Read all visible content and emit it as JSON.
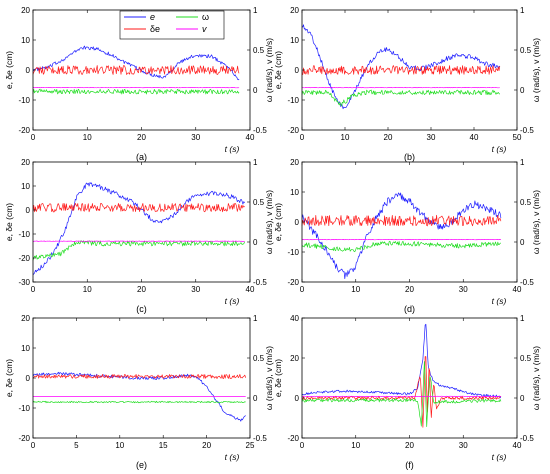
{
  "colors": {
    "e": "#1f1fff",
    "delta_e": "#ff1a1a",
    "omega": "#22dd22",
    "v": "#ff00ff"
  },
  "legend": {
    "panel_index": 0,
    "entries": [
      {
        "key": "e",
        "label": "e",
        "color": "#1f1fff"
      },
      {
        "key": "omega",
        "label": "ω",
        "color": "#22dd22"
      },
      {
        "key": "delta_e",
        "label": "δe",
        "color": "#ff1a1a"
      },
      {
        "key": "v",
        "label": "v",
        "color": "#ff00ff"
      }
    ]
  },
  "chart_data": [
    {
      "panel": "(a)",
      "type": "line",
      "xlabel": "t (s)",
      "ylabel_left": "e, δe (cm)",
      "ylabel_right": "ω (rad/s), v (m/s)",
      "xlim": [
        0,
        40
      ],
      "xticks": [
        "0",
        "10",
        "20",
        "30",
        "40"
      ],
      "ylim_left": [
        -20,
        20
      ],
      "yticks_left": [
        "-20",
        "-10",
        "0",
        "10",
        "20"
      ],
      "ylim_right": [
        -0.5,
        1
      ],
      "yticks_right": [
        "-0.5",
        "0",
        "0.5",
        "1"
      ],
      "series": [
        {
          "name": "e",
          "axis": "left",
          "color": "#1f1fff",
          "noise": 0.6,
          "x": [
            0,
            3,
            6,
            9,
            12,
            15,
            18,
            21,
            24,
            27,
            30,
            33,
            36,
            38
          ],
          "y": [
            0,
            1,
            4,
            7.5,
            7,
            4.5,
            1.5,
            -1,
            -2.5,
            2.5,
            5,
            4.5,
            1,
            -3.5
          ]
        },
        {
          "name": "δe",
          "axis": "left",
          "color": "#ff1a1a",
          "noise": 1.5,
          "x": [
            0,
            38
          ],
          "y": [
            0,
            0
          ]
        },
        {
          "name": "ω",
          "axis": "right",
          "color": "#22dd22",
          "noise": 0.03,
          "x": [
            0,
            38
          ],
          "y": [
            -0.02,
            -0.02
          ]
        },
        {
          "name": "v",
          "axis": "right",
          "color": "#ff00ff",
          "noise": 0.003,
          "x": [
            0,
            38
          ],
          "y": [
            0.03,
            0.03
          ]
        }
      ]
    },
    {
      "panel": "(b)",
      "type": "line",
      "xlabel": "t (s)",
      "ylabel_left": "e, δe (cm)",
      "ylabel_right": "ω (rad/s), v (m/s)",
      "xlim": [
        0,
        50
      ],
      "xticks": [
        "0",
        "10",
        "20",
        "30",
        "40",
        "50"
      ],
      "ylim_left": [
        -20,
        20
      ],
      "yticks_left": [
        "-20",
        "-10",
        "0",
        "10",
        "20"
      ],
      "ylim_right": [
        -0.5,
        1
      ],
      "yticks_right": [
        "-0.5",
        "0",
        "0.5",
        "1"
      ],
      "series": [
        {
          "name": "e",
          "axis": "left",
          "color": "#1f1fff",
          "noise": 0.8,
          "x": [
            0,
            2,
            4,
            6,
            8,
            10,
            12,
            14,
            16,
            18,
            20,
            22,
            25,
            28,
            31,
            34,
            37,
            40,
            43,
            46
          ],
          "y": [
            15,
            12,
            5,
            -3,
            -10,
            -13,
            -8,
            -2,
            3,
            6.5,
            7,
            5,
            1,
            0.5,
            2,
            4,
            5,
            4,
            2,
            1
          ]
        },
        {
          "name": "δe",
          "axis": "left",
          "color": "#ff1a1a",
          "noise": 1.5,
          "x": [
            0,
            46
          ],
          "y": [
            0,
            0
          ]
        },
        {
          "name": "ω",
          "axis": "right",
          "color": "#22dd22",
          "noise": 0.03,
          "x": [
            0,
            6,
            9,
            12,
            15,
            46
          ],
          "y": [
            -0.03,
            -0.03,
            -0.18,
            -0.07,
            -0.03,
            -0.03
          ]
        },
        {
          "name": "v",
          "axis": "right",
          "color": "#ff00ff",
          "noise": 0.003,
          "x": [
            0,
            46
          ],
          "y": [
            0.03,
            0.03
          ]
        }
      ]
    },
    {
      "panel": "(c)",
      "type": "line",
      "xlabel": "t (s)",
      "ylabel_left": "e, δe (cm)",
      "ylabel_right": "ω (rad/s), v (m/s)",
      "xlim": [
        0,
        40
      ],
      "xticks": [
        "0",
        "10",
        "20",
        "30",
        "40"
      ],
      "ylim_left": [
        -30,
        20
      ],
      "yticks_left": [
        "-30",
        "-20",
        "-10",
        "0",
        "10",
        "20"
      ],
      "ylim_right": [
        -0.5,
        1
      ],
      "yticks_right": [
        "-0.5",
        "0",
        "0.5",
        "1"
      ],
      "series": [
        {
          "name": "e",
          "axis": "left",
          "color": "#1f1fff",
          "noise": 1,
          "x": [
            0,
            2,
            4,
            6,
            8,
            10,
            12,
            14,
            16,
            18,
            20,
            22,
            24,
            26,
            28,
            30,
            33,
            36,
            39
          ],
          "y": [
            -26,
            -23,
            -17,
            -8,
            5,
            11,
            10,
            8,
            6,
            4,
            0,
            -4,
            -5,
            -2,
            3,
            6,
            7,
            6,
            3
          ]
        },
        {
          "name": "δe",
          "axis": "left",
          "color": "#ff1a1a",
          "noise": 1.8,
          "x": [
            0,
            39
          ],
          "y": [
            1,
            1
          ]
        },
        {
          "name": "ω",
          "axis": "right",
          "color": "#22dd22",
          "noise": 0.03,
          "x": [
            0,
            5,
            8,
            12,
            39
          ],
          "y": [
            -0.2,
            -0.15,
            0,
            -0.02,
            -0.02
          ]
        },
        {
          "name": "v",
          "axis": "right",
          "color": "#ff00ff",
          "noise": 0.003,
          "x": [
            0,
            39
          ],
          "y": [
            0.01,
            0.01
          ]
        }
      ]
    },
    {
      "panel": "(d)",
      "type": "line",
      "xlabel": "t (s)",
      "ylabel_left": "e, δe (cm)",
      "ylabel_right": "ω (rad/s), v (m/s)",
      "xlim": [
        0,
        40
      ],
      "xticks": [
        "0",
        "10",
        "20",
        "30",
        "40"
      ],
      "ylim_left": [
        -20,
        20
      ],
      "yticks_left": [
        "-20",
        "-10",
        "0",
        "10",
        "20"
      ],
      "ylim_right": [
        -0.5,
        1
      ],
      "yticks_right": [
        "-0.5",
        "0",
        "0.5",
        "1"
      ],
      "series": [
        {
          "name": "e",
          "axis": "left",
          "color": "#1f1fff",
          "noise": 1.2,
          "x": [
            0,
            2,
            4,
            6,
            8,
            10,
            12,
            14,
            16,
            18,
            20,
            22,
            24,
            26,
            28,
            30,
            32,
            34,
            36,
            37
          ],
          "y": [
            2,
            -3,
            -8,
            -14,
            -18,
            -15,
            -5,
            2,
            7,
            9,
            7,
            3,
            0,
            -2,
            0,
            4,
            6,
            5,
            3,
            2
          ]
        },
        {
          "name": "δe",
          "axis": "left",
          "color": "#ff1a1a",
          "noise": 1.8,
          "x": [
            0,
            37
          ],
          "y": [
            0.5,
            0.5
          ]
        },
        {
          "name": "ω",
          "axis": "right",
          "color": "#22dd22",
          "noise": 0.03,
          "x": [
            0,
            6,
            10,
            14,
            20,
            30,
            37
          ],
          "y": [
            -0.03,
            -0.08,
            -0.1,
            -0.02,
            -0.02,
            -0.05,
            -0.02
          ]
        },
        {
          "name": "v",
          "axis": "right",
          "color": "#ff00ff",
          "noise": 0.003,
          "x": [
            0,
            37
          ],
          "y": [
            0.03,
            0.03
          ]
        }
      ]
    },
    {
      "panel": "(e)",
      "type": "line",
      "xlabel": "t (s)",
      "ylabel_left": "e, δe (cm)",
      "ylabel_right": "ω (rad/s), v (m/s)",
      "xlim": [
        0,
        25
      ],
      "xticks": [
        "0",
        "5",
        "10",
        "15",
        "20",
        "25"
      ],
      "ylim_left": [
        -20,
        20
      ],
      "yticks_left": [
        "-20",
        "-10",
        "0",
        "10",
        "20"
      ],
      "ylim_right": [
        -0.5,
        1
      ],
      "yticks_right": [
        "-0.5",
        "0",
        "0.5",
        "1"
      ],
      "series": [
        {
          "name": "e",
          "axis": "left",
          "color": "#1f1fff",
          "noise": 0.5,
          "x": [
            0,
            3,
            6,
            9,
            12,
            15,
            18,
            19,
            20,
            21,
            22,
            23,
            24,
            24.5
          ],
          "y": [
            1,
            1.5,
            1,
            0.5,
            0,
            0,
            1,
            0,
            -3,
            -7,
            -11,
            -13,
            -14,
            -13
          ]
        },
        {
          "name": "δe",
          "axis": "left",
          "color": "#ff1a1a",
          "noise": 0.7,
          "x": [
            0,
            24.5
          ],
          "y": [
            0.5,
            0.5
          ]
        },
        {
          "name": "ω",
          "axis": "right",
          "color": "#22dd22",
          "noise": 0.01,
          "x": [
            0,
            24.5
          ],
          "y": [
            -0.05,
            -0.05
          ]
        },
        {
          "name": "v",
          "axis": "right",
          "color": "#ff00ff",
          "noise": 0,
          "x": [
            0,
            24.5
          ],
          "y": [
            0.02,
            0.02
          ]
        }
      ]
    },
    {
      "panel": "(f)",
      "type": "line",
      "xlabel": "t (s)",
      "ylabel_left": "e, δe (cm)",
      "ylabel_right": "ω (rad/s), v (m/s)",
      "xlim": [
        0,
        40
      ],
      "xticks": [
        "0",
        "10",
        "20",
        "30",
        "40"
      ],
      "ylim_left": [
        -20,
        40
      ],
      "yticks_left": [
        "-20",
        "0",
        "20",
        "40"
      ],
      "ylim_right": [
        -0.5,
        1
      ],
      "yticks_right": [
        "-0.5",
        "0",
        "0.5",
        "1"
      ],
      "series": [
        {
          "name": "e",
          "axis": "left",
          "color": "#1f1fff",
          "noise": 0.6,
          "x": [
            0,
            4,
            8,
            12,
            16,
            20,
            21.5,
            22.5,
            23,
            23.5,
            24.5,
            26,
            28,
            30,
            33,
            36,
            37
          ],
          "y": [
            2,
            3,
            3.5,
            3,
            2.5,
            2,
            5,
            20,
            40,
            15,
            8,
            6,
            5,
            3,
            1.5,
            1,
            0.5
          ]
        },
        {
          "name": "δe",
          "axis": "left",
          "color": "#ff1a1a",
          "noise": 0.8,
          "x": [
            0,
            21,
            22,
            22.5,
            23,
            23.3,
            23.7,
            24,
            24.5,
            25,
            26,
            37
          ],
          "y": [
            0,
            0,
            12,
            -15,
            28,
            -10,
            20,
            -12,
            8,
            -5,
            0,
            0
          ]
        },
        {
          "name": "ω",
          "axis": "right",
          "color": "#22dd22",
          "noise": 0.02,
          "x": [
            0,
            21.5,
            22.2,
            22.8,
            23.2,
            23.8,
            24.5,
            37
          ],
          "y": [
            -0.03,
            -0.03,
            -0.35,
            0.5,
            -0.35,
            0.3,
            -0.05,
            -0.03
          ]
        },
        {
          "name": "v",
          "axis": "right",
          "color": "#ff00ff",
          "noise": 0.003,
          "x": [
            0,
            37
          ],
          "y": [
            0.02,
            0.02
          ]
        }
      ]
    }
  ]
}
